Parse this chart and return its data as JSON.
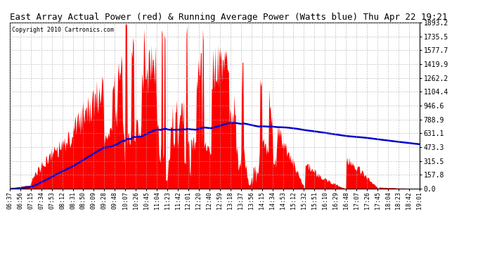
{
  "title": "East Array Actual Power (red) & Running Average Power (Watts blue) Thu Apr 22 19:21",
  "copyright": "Copyright 2010 Cartronics.com",
  "yticks": [
    0.0,
    157.8,
    315.5,
    473.3,
    631.1,
    788.9,
    946.6,
    1104.4,
    1262.2,
    1419.9,
    1577.7,
    1735.5,
    1893.2
  ],
  "ymax": 1893.2,
  "ymin": 0.0,
  "background_color": "#ffffff",
  "plot_bg_color": "#ffffff",
  "grid_color": "#aaaaaa",
  "red_color": "#ff0000",
  "blue_color": "#0000cc",
  "title_fontsize": 9,
  "x_labels": [
    "06:37",
    "06:56",
    "07:15",
    "07:34",
    "07:53",
    "08:12",
    "08:31",
    "08:50",
    "09:09",
    "09:28",
    "09:48",
    "10:07",
    "10:26",
    "10:45",
    "11:04",
    "11:23",
    "11:42",
    "12:01",
    "12:20",
    "12:40",
    "12:59",
    "13:18",
    "13:37",
    "13:56",
    "14:15",
    "14:34",
    "14:53",
    "15:12",
    "15:32",
    "15:51",
    "16:10",
    "16:29",
    "16:48",
    "17:07",
    "17:26",
    "17:45",
    "18:04",
    "18:23",
    "18:42",
    "19:01"
  ]
}
